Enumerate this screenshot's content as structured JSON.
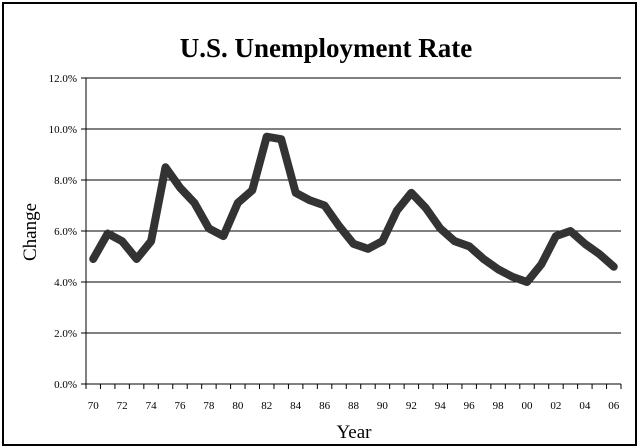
{
  "chart_data": {
    "type": "line",
    "title": "U.S. Unemployment Rate",
    "xlabel": "Year",
    "ylabel": "Change",
    "x_tick_labels": [
      "70",
      "72",
      "74",
      "76",
      "78",
      "80",
      "82",
      "84",
      "86",
      "88",
      "90",
      "92",
      "94",
      "96",
      "98",
      "00",
      "02",
      "04",
      "06"
    ],
    "y_tick_labels": [
      "0.0%",
      "2.0%",
      "4.0%",
      "6.0%",
      "8.0%",
      "10.0%",
      "12.0%"
    ],
    "y_ticks": [
      0,
      2,
      4,
      6,
      8,
      10,
      12
    ],
    "ylim": [
      0,
      12
    ],
    "grid": true,
    "legend": "none",
    "line_color": "#333333",
    "series": [
      {
        "x": [
          1970,
          1971,
          1972,
          1973,
          1974,
          1975,
          1976,
          1977,
          1978,
          1979,
          1980,
          1981,
          1982,
          1983,
          1984,
          1985,
          1986,
          1987,
          1988,
          1989,
          1990,
          1991,
          1992,
          1993,
          1994,
          1995,
          1996,
          1997,
          1998,
          1999,
          2000,
          2001,
          2002,
          2003,
          2004,
          2005,
          2006
        ],
        "values": [
          4.9,
          5.9,
          5.6,
          4.9,
          5.6,
          8.5,
          7.7,
          7.1,
          6.1,
          5.8,
          7.1,
          7.6,
          9.7,
          9.6,
          7.5,
          7.2,
          7.0,
          6.2,
          5.5,
          5.3,
          5.6,
          6.8,
          7.5,
          6.9,
          6.1,
          5.6,
          5.4,
          4.9,
          4.5,
          4.2,
          4.0,
          4.7,
          5.8,
          6.0,
          5.5,
          5.1,
          4.6
        ]
      }
    ]
  }
}
